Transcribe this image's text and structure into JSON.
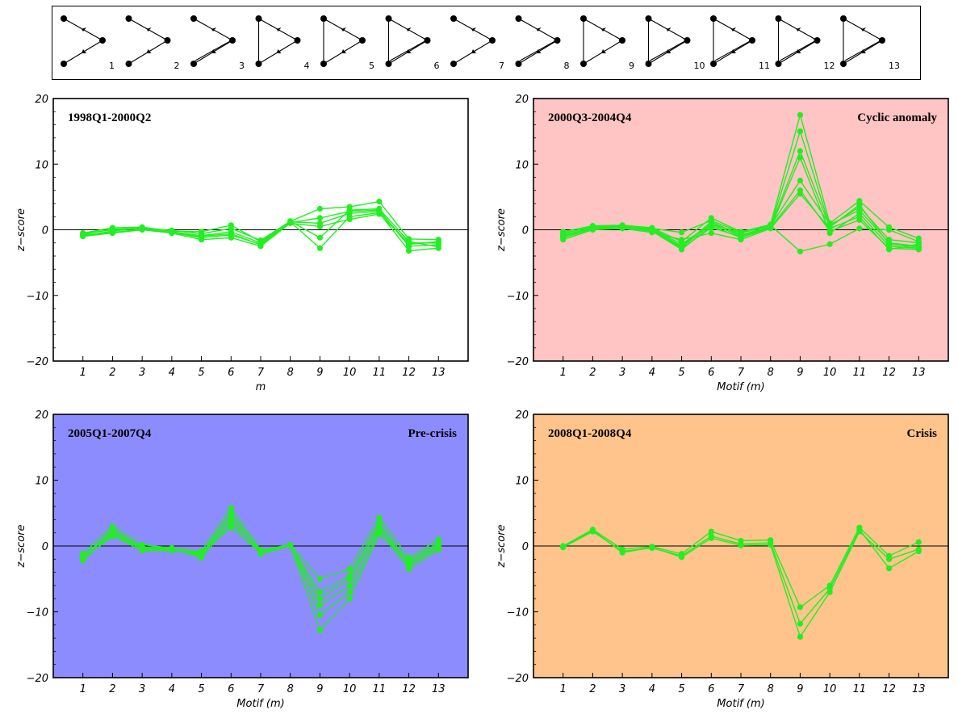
{
  "motif_strip": {
    "motifs": [
      {
        "number": "1"
      },
      {
        "number": "2"
      },
      {
        "number": "3"
      },
      {
        "number": "4"
      },
      {
        "number": "5"
      },
      {
        "number": "6"
      },
      {
        "number": "7"
      },
      {
        "number": "8"
      },
      {
        "number": "9"
      },
      {
        "number": "10"
      },
      {
        "number": "11"
      },
      {
        "number": "12"
      },
      {
        "number": "13"
      }
    ]
  },
  "colors": {
    "series": "#22ee22",
    "panel_backgrounds": [
      "#ffffff",
      "#ffc4c4",
      "#8c8cff",
      "#ffc48c"
    ]
  },
  "chart_data": [
    {
      "type": "line",
      "period_label": "1998Q1-2000Q2",
      "annotation": "",
      "xlabel": "m",
      "ylabel": "z−score",
      "x": [
        1,
        2,
        3,
        4,
        5,
        6,
        7,
        8,
        9,
        10,
        11,
        12,
        13
      ],
      "ylim": [
        -20,
        20
      ],
      "yticks": [
        "−20",
        "−10",
        "0",
        "10",
        "20"
      ],
      "background": "#ffffff",
      "series": [
        {
          "values": [
            -0.5,
            0.3,
            0.4,
            -0.2,
            -0.3,
            0.7,
            -1.8,
            1.3,
            3.2,
            3.5,
            4.3,
            -1.4,
            -1.5
          ]
        },
        {
          "values": [
            -0.8,
            -0.4,
            0.1,
            -0.4,
            -1.2,
            -0.8,
            -2.2,
            1.1,
            1.8,
            2.8,
            3.0,
            -2.5,
            -2.3
          ]
        },
        {
          "values": [
            -0.6,
            0.0,
            0.3,
            -0.3,
            -0.9,
            -0.3,
            -2.0,
            1.2,
            -2.8,
            2.0,
            2.6,
            -3.2,
            -2.8
          ]
        },
        {
          "values": [
            -1.0,
            -0.5,
            0.0,
            -0.5,
            -1.5,
            -1.2,
            -2.5,
            1.0,
            0.5,
            1.6,
            2.4,
            -2.0,
            -2.0
          ]
        },
        {
          "values": [
            -0.7,
            0.1,
            0.2,
            -0.1,
            -0.6,
            0.2,
            -1.6,
            1.3,
            -1.2,
            3.0,
            3.2,
            -1.8,
            -2.6
          ]
        },
        {
          "values": [
            -0.9,
            -0.2,
            0.3,
            -0.4,
            -1.0,
            -0.6,
            -2.3,
            1.2,
            1.0,
            2.5,
            2.8,
            -2.2,
            -1.8
          ]
        }
      ]
    },
    {
      "type": "line",
      "period_label": "2000Q3-2004Q4",
      "annotation": "Cyclic anomaly",
      "xlabel": "Motif (m)",
      "ylabel": "z−score",
      "x": [
        1,
        2,
        3,
        4,
        5,
        6,
        7,
        8,
        9,
        10,
        11,
        12,
        13
      ],
      "ylim": [
        -20,
        20
      ],
      "yticks": [
        "−20",
        "−10",
        "0",
        "10",
        "20"
      ],
      "background": "#ffc4c4",
      "series": [
        {
          "values": [
            -0.3,
            0.6,
            0.7,
            0.3,
            -1.8,
            1.8,
            -0.3,
            0.8,
            17.5,
            1.0,
            4.4,
            0.4,
            -1.3
          ]
        },
        {
          "values": [
            -0.8,
            0.3,
            0.5,
            0.1,
            -2.5,
            1.2,
            -0.8,
            0.5,
            15.0,
            0.5,
            3.5,
            -1.5,
            -2.0
          ]
        },
        {
          "values": [
            -1.2,
            0.1,
            0.3,
            -0.2,
            -3.0,
            0.6,
            -1.2,
            0.3,
            11.0,
            -0.5,
            2.5,
            -2.5,
            -2.8
          ]
        },
        {
          "values": [
            -0.5,
            0.4,
            0.6,
            0.2,
            -2.2,
            0.9,
            -0.5,
            0.6,
            7.5,
            0.8,
            3.0,
            -2.0,
            -2.5
          ]
        },
        {
          "values": [
            -1.0,
            0.2,
            0.4,
            -0.1,
            -2.8,
            0.3,
            -1.0,
            0.4,
            6.0,
            -0.2,
            1.5,
            -2.8,
            -3.0
          ]
        },
        {
          "values": [
            -1.5,
            0.0,
            0.2,
            -0.4,
            -1.5,
            -0.5,
            -1.5,
            0.2,
            5.5,
            0.2,
            2.0,
            -3.0,
            -2.2
          ]
        },
        {
          "values": [
            -0.6,
            0.5,
            0.6,
            0.2,
            -0.4,
            1.4,
            -0.4,
            0.7,
            -3.3,
            -2.2,
            0.2,
            0.0,
            -1.8
          ]
        },
        {
          "values": [
            -0.9,
            0.2,
            0.4,
            0.0,
            -2.6,
            0.8,
            -0.9,
            0.5,
            12.0,
            0.4,
            3.8,
            -2.2,
            -2.6
          ]
        }
      ]
    },
    {
      "type": "line",
      "period_label": "2005Q1-2007Q4",
      "annotation": "Pre-crisis",
      "xlabel": "Motif (m)",
      "ylabel": "z−score",
      "x": [
        1,
        2,
        3,
        4,
        5,
        6,
        7,
        8,
        9,
        10,
        11,
        12,
        13
      ],
      "ylim": [
        -20,
        20
      ],
      "yticks": [
        "−20",
        "−10",
        "0",
        "10",
        "20"
      ],
      "background": "#8c8cff",
      "series": [
        {
          "values": [
            -1.2,
            3.0,
            0.2,
            -0.3,
            -0.8,
            5.8,
            -0.6,
            0.2,
            -5.0,
            -3.5,
            4.3,
            -1.8,
            1.0
          ]
        },
        {
          "values": [
            -1.8,
            2.5,
            -0.2,
            -0.5,
            -1.2,
            5.0,
            -0.9,
            0.1,
            -7.0,
            -4.5,
            3.5,
            -2.5,
            0.3
          ]
        },
        {
          "values": [
            -2.2,
            1.8,
            -0.5,
            -0.6,
            -1.5,
            4.0,
            -1.2,
            0.0,
            -9.0,
            -6.0,
            2.8,
            -3.0,
            -0.3
          ]
        },
        {
          "values": [
            -1.5,
            2.2,
            -0.1,
            -0.4,
            -1.8,
            3.5,
            -0.8,
            0.2,
            -10.5,
            -7.0,
            2.2,
            -3.5,
            -0.6
          ]
        },
        {
          "values": [
            -2.0,
            1.5,
            -0.7,
            -0.7,
            -1.0,
            2.8,
            -1.0,
            0.1,
            -12.8,
            -8.0,
            1.8,
            -2.2,
            0.5
          ]
        },
        {
          "values": [
            -1.7,
            2.0,
            -0.3,
            -0.5,
            -1.3,
            4.5,
            -0.7,
            0.2,
            -8.0,
            -5.0,
            3.0,
            -2.8,
            0.0
          ]
        }
      ]
    },
    {
      "type": "line",
      "period_label": "2008Q1-2008Q4",
      "annotation": "Crisis",
      "xlabel": "Motif (m)",
      "ylabel": "z−score",
      "x": [
        1,
        2,
        3,
        4,
        5,
        6,
        7,
        8,
        9,
        10,
        11,
        12,
        13
      ],
      "ylim": [
        -20,
        20
      ],
      "yticks": [
        "−20",
        "−10",
        "0",
        "10",
        "20"
      ],
      "background": "#ffc48c",
      "series": [
        {
          "values": [
            0.0,
            2.5,
            -0.5,
            -0.1,
            -1.2,
            2.2,
            0.8,
            0.9,
            -9.3,
            -6.0,
            2.8,
            -1.5,
            0.6
          ]
        },
        {
          "values": [
            -0.2,
            2.2,
            -0.8,
            -0.3,
            -1.5,
            1.5,
            0.3,
            0.5,
            -11.8,
            -6.5,
            2.5,
            -3.4,
            -0.8
          ]
        },
        {
          "values": [
            -0.1,
            2.4,
            -1.0,
            -0.2,
            -1.7,
            1.2,
            0.1,
            0.2,
            -13.8,
            -7.0,
            2.2,
            -2.0,
            -0.5
          ]
        }
      ]
    }
  ]
}
